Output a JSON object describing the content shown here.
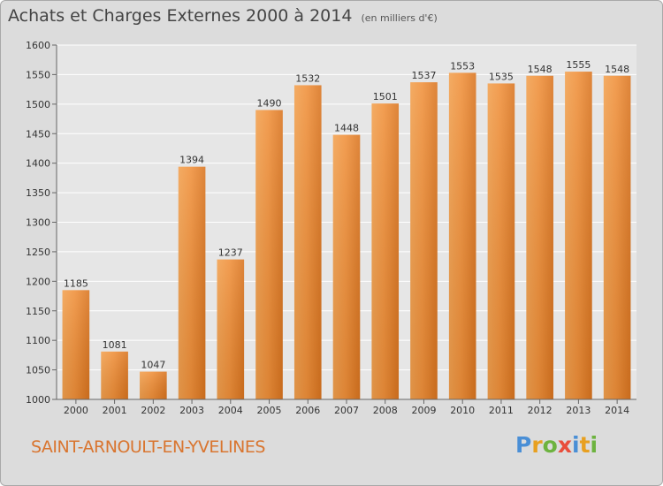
{
  "chart_data": {
    "type": "bar",
    "title": "Achats et Charges Externes 2000 à 2014",
    "subtitle": "(en milliers d'€)",
    "categories": [
      "2000",
      "2001",
      "2002",
      "2003",
      "2004",
      "2005",
      "2006",
      "2007",
      "2008",
      "2009",
      "2010",
      "2011",
      "2012",
      "2013",
      "2014"
    ],
    "values": [
      1185,
      1081,
      1047,
      1394,
      1237,
      1490,
      1532,
      1448,
      1501,
      1537,
      1553,
      1535,
      1548,
      1555,
      1548
    ],
    "ylim": [
      1000,
      1600
    ],
    "yticks": [
      1000,
      1050,
      1100,
      1150,
      1200,
      1250,
      1300,
      1350,
      1400,
      1450,
      1500,
      1550,
      1600
    ],
    "grid": true,
    "bar_color": "#f0903a"
  },
  "footer": {
    "place": "SAINT-ARNOULT-EN-YVELINES",
    "logo_letters": [
      {
        "ch": "P",
        "color": "#4a8fd6"
      },
      {
        "ch": "r",
        "color": "#e8a020"
      },
      {
        "ch": "o",
        "color": "#6db33f"
      },
      {
        "ch": "x",
        "color": "#e94e3b"
      },
      {
        "ch": "i",
        "color": "#4a8fd6"
      },
      {
        "ch": "t",
        "color": "#e8a020"
      },
      {
        "ch": "i",
        "color": "#6db33f"
      }
    ]
  }
}
